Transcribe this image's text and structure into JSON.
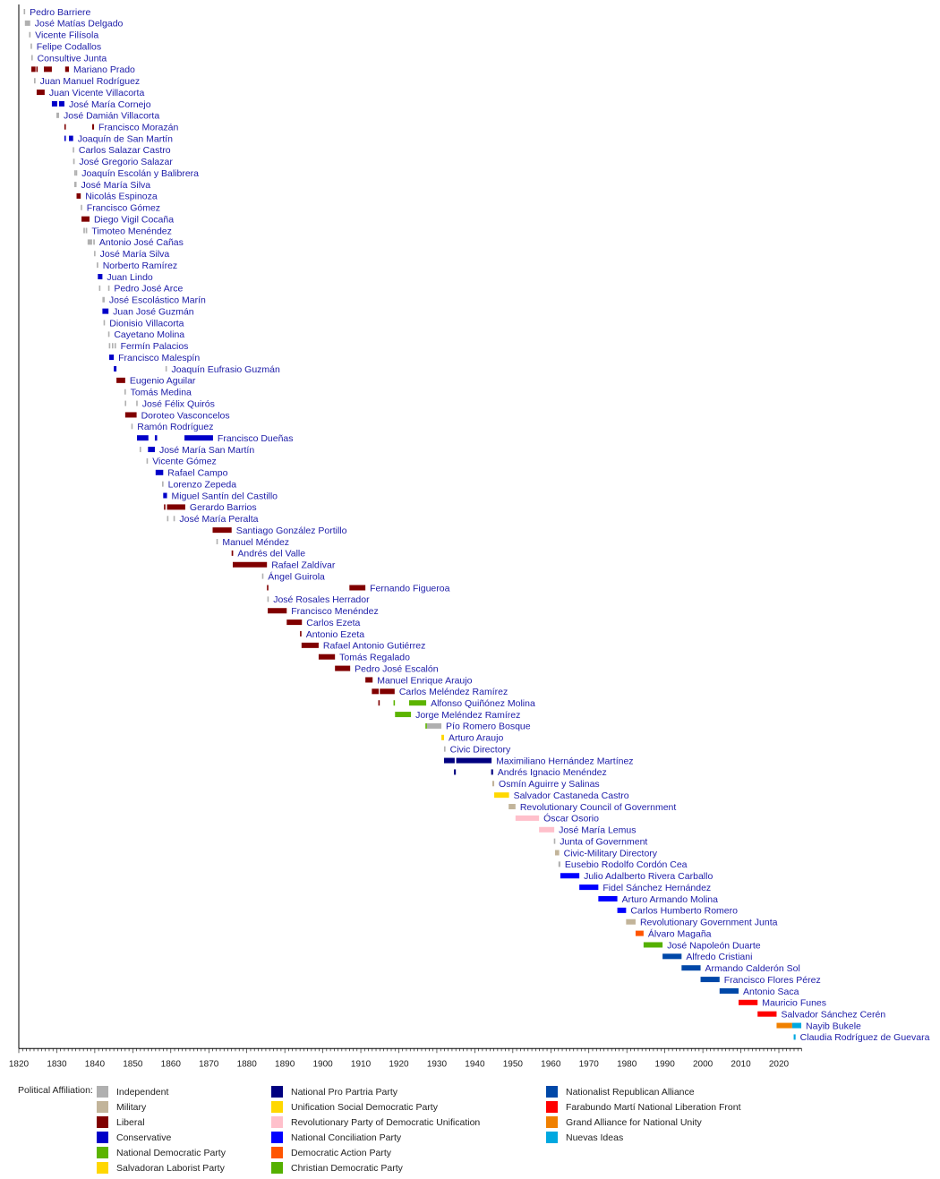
{
  "chart_data": {
    "type": "timeline",
    "xlim": [
      1820,
      2026
    ],
    "x_ticks": [
      1820,
      1830,
      1840,
      1850,
      1860,
      1870,
      1880,
      1890,
      1900,
      1910,
      1920,
      1930,
      1940,
      1950,
      1960,
      1970,
      1980,
      1990,
      2000,
      2010,
      2020
    ],
    "grid": false,
    "legend_position": "bottom",
    "legend_title": "Political Affiliation:",
    "parties": [
      {
        "key": "I",
        "name": "Independent",
        "color": "#b0b0b0"
      },
      {
        "key": "M",
        "name": "Military",
        "color": "#c2b49a"
      },
      {
        "key": "L",
        "name": "Liberal",
        "color": "#800000"
      },
      {
        "key": "C",
        "name": "Conservative",
        "color": "#0000c8"
      },
      {
        "key": "NDP",
        "name": "National Democratic Party",
        "color": "#5cb400"
      },
      {
        "key": "SLP",
        "name": "Salvadoran Laborist Party",
        "color": "#ffd700"
      },
      {
        "key": "PPP",
        "name": "National Pro Partria Party",
        "color": "#000080"
      },
      {
        "key": "USDP",
        "name": "Unification Social Democratic Party",
        "color": "#ffd800"
      },
      {
        "key": "PRUD",
        "name": "Revolutionary Party of Democratic Unification",
        "color": "#ffc0cb"
      },
      {
        "key": "PCN",
        "name": "National Conciliation Party",
        "color": "#0000ff"
      },
      {
        "key": "PAD",
        "name": "Democratic Action Party",
        "color": "#ff5500"
      },
      {
        "key": "PDC",
        "name": "Christian Democratic Party",
        "color": "#55b000"
      },
      {
        "key": "ARENA",
        "name": "Nationalist Republican Alliance",
        "color": "#0048a8"
      },
      {
        "key": "FMLN",
        "name": "Farabundo Martí National Liberation Front",
        "color": "#ff0000"
      },
      {
        "key": "GANA",
        "name": "Grand Alliance for National Unity",
        "color": "#f08000"
      },
      {
        "key": "NI",
        "name": "Nuevas Ideas",
        "color": "#00a8e0"
      }
    ],
    "rows": [
      {
        "name": "Pedro Barriere",
        "terms": [
          [
            1821.3,
            1821.6,
            "I"
          ]
        ]
      },
      {
        "name": "José Matías Delgado",
        "terms": [
          [
            1821.6,
            1823.0,
            "I"
          ]
        ]
      },
      {
        "name": "Vicente Filísola",
        "terms": [
          [
            1822.7,
            1823.1,
            "I"
          ]
        ]
      },
      {
        "name": "Felipe Codallos",
        "terms": [
          [
            1823.1,
            1823.3,
            "I"
          ]
        ]
      },
      {
        "name": "Consultive Junta",
        "terms": [
          [
            1823.3,
            1823.5,
            "I"
          ]
        ]
      },
      {
        "name": "Mariano Prado",
        "terms": [
          [
            1823.3,
            1824.4,
            "L"
          ],
          [
            1824.6,
            1824.8,
            "L"
          ],
          [
            1826.6,
            1828.7,
            "L"
          ],
          [
            1832.2,
            1833.2,
            "L"
          ]
        ]
      },
      {
        "name": "Juan Manuel Rodríguez",
        "terms": [
          [
            1824.0,
            1824.4,
            "I"
          ]
        ]
      },
      {
        "name": "Juan Vicente Villacorta",
        "terms": [
          [
            1824.7,
            1826.8,
            "L"
          ]
        ]
      },
      {
        "name": "José María Cornejo",
        "terms": [
          [
            1828.7,
            1830.1,
            "C"
          ],
          [
            1830.6,
            1832.0,
            "C"
          ]
        ]
      },
      {
        "name": "José Damián Villacorta",
        "terms": [
          [
            1829.9,
            1830.6,
            "I"
          ]
        ]
      },
      {
        "name": "Francisco Morazán",
        "terms": [
          [
            1832.0,
            1832.2,
            "L"
          ],
          [
            1839.3,
            1839.8,
            "L"
          ]
        ]
      },
      {
        "name": "Joaquín de San Martín",
        "terms": [
          [
            1832.0,
            1832.3,
            "C"
          ],
          [
            1833.2,
            1834.3,
            "C"
          ]
        ]
      },
      {
        "name": "Carlos Salazar Castro",
        "terms": [
          [
            1834.2,
            1834.4,
            "I"
          ]
        ]
      },
      {
        "name": "José Gregorio Salazar",
        "terms": [
          [
            1834.3,
            1834.7,
            "I"
          ]
        ]
      },
      {
        "name": "Joaquín Escolán y Balibrera",
        "terms": [
          [
            1834.6,
            1834.8,
            "I"
          ],
          [
            1835.0,
            1835.2,
            "I"
          ]
        ]
      },
      {
        "name": "José María Silva",
        "terms": [
          [
            1834.6,
            1835.2,
            "I"
          ]
        ]
      },
      {
        "name": "Nicolás Espinoza",
        "terms": [
          [
            1835.2,
            1836.3,
            "L"
          ]
        ]
      },
      {
        "name": "Francisco Gómez",
        "terms": [
          [
            1836.3,
            1836.6,
            "I"
          ]
        ]
      },
      {
        "name": "Diego Vigil Cocaña",
        "terms": [
          [
            1836.5,
            1838.6,
            "L"
          ]
        ]
      },
      {
        "name": "Timoteo Menéndez",
        "terms": [
          [
            1837.0,
            1837.4,
            "I"
          ],
          [
            1837.6,
            1838.0,
            "I"
          ]
        ]
      },
      {
        "name": "Antonio José Cañas",
        "terms": [
          [
            1838.1,
            1839.3,
            "I"
          ],
          [
            1839.6,
            1840.0,
            "I"
          ]
        ]
      },
      {
        "name": "José María Silva",
        "terms": [
          [
            1839.8,
            1840.1,
            "I"
          ]
        ]
      },
      {
        "name": "Norberto Ramírez",
        "terms": [
          [
            1840.5,
            1840.9,
            "I"
          ]
        ]
      },
      {
        "name": "Juan Lindo",
        "terms": [
          [
            1840.8,
            1842.0,
            "C"
          ]
        ]
      },
      {
        "name": "Pedro José Arce",
        "terms": [
          [
            1841.1,
            1841.3,
            "I"
          ],
          [
            1843.5,
            1843.7,
            "I"
          ]
        ]
      },
      {
        "name": "José Escolástico Marín",
        "terms": [
          [
            1842.0,
            1842.6,
            "I"
          ]
        ]
      },
      {
        "name": "Juan José Guzmán",
        "terms": [
          [
            1842.0,
            1843.6,
            "C"
          ]
        ]
      },
      {
        "name": "Dionisio Villacorta",
        "terms": [
          [
            1842.3,
            1842.6,
            "I"
          ]
        ]
      },
      {
        "name": "Cayetano Molina",
        "terms": [
          [
            1843.5,
            1843.7,
            "I"
          ]
        ]
      },
      {
        "name": "Fermín Palacios",
        "terms": [
          [
            1843.7,
            1843.9,
            "I"
          ],
          [
            1844.5,
            1844.7,
            "I"
          ],
          [
            1845.2,
            1845.4,
            "I"
          ]
        ]
      },
      {
        "name": "Francisco Malespín",
        "terms": [
          [
            1843.8,
            1845.0,
            "C"
          ]
        ]
      },
      {
        "name": "Joaquín Eufrasio Guzmán",
        "terms": [
          [
            1845.0,
            1845.7,
            "C"
          ],
          [
            1858.6,
            1858.8,
            "I"
          ]
        ]
      },
      {
        "name": "Eugenio Aguilar",
        "terms": [
          [
            1845.7,
            1848.0,
            "L"
          ]
        ]
      },
      {
        "name": "Tomás Medina",
        "terms": [
          [
            1847.8,
            1848.0,
            "I"
          ]
        ]
      },
      {
        "name": "José Félix Quirós",
        "terms": [
          [
            1847.9,
            1848.1,
            "I"
          ],
          [
            1850.9,
            1851.1,
            "I"
          ]
        ]
      },
      {
        "name": "Doroteo Vasconcelos",
        "terms": [
          [
            1848.0,
            1851.0,
            "L"
          ]
        ]
      },
      {
        "name": "Ramón Rodríguez",
        "terms": [
          [
            1849.6,
            1849.8,
            "I"
          ]
        ]
      },
      {
        "name": "Francisco Dueñas",
        "terms": [
          [
            1851.1,
            1854.1,
            "C"
          ],
          [
            1855.8,
            1856.4,
            "C"
          ],
          [
            1863.6,
            1871.1,
            "C"
          ]
        ]
      },
      {
        "name": "José María San Martín",
        "terms": [
          [
            1851.8,
            1852.0,
            "I"
          ],
          [
            1854.0,
            1855.8,
            "C"
          ]
        ]
      },
      {
        "name": "Vicente Gómez",
        "terms": [
          [
            1853.6,
            1853.9,
            "I"
          ]
        ]
      },
      {
        "name": "Rafael Campo",
        "terms": [
          [
            1856.0,
            1858.0,
            "C"
          ]
        ]
      },
      {
        "name": "Lorenzo Zepeda",
        "terms": [
          [
            1857.7,
            1858.0,
            "I"
          ]
        ]
      },
      {
        "name": "Miguel Santín del Castillo",
        "terms": [
          [
            1858.0,
            1859.0,
            "C"
          ]
        ]
      },
      {
        "name": "Gerardo Barrios",
        "terms": [
          [
            1858.2,
            1858.4,
            "L"
          ],
          [
            1859.0,
            1863.8,
            "L"
          ]
        ]
      },
      {
        "name": "José María Peralta",
        "terms": [
          [
            1859.0,
            1859.2,
            "I"
          ],
          [
            1860.7,
            1860.9,
            "I"
          ]
        ]
      },
      {
        "name": "Santiago González Portillo",
        "terms": [
          [
            1871.0,
            1876.0,
            "L"
          ]
        ]
      },
      {
        "name": "Manuel Méndez",
        "terms": [
          [
            1872.0,
            1872.3,
            "I"
          ]
        ]
      },
      {
        "name": "Andrés del Valle",
        "terms": [
          [
            1876.0,
            1876.4,
            "L"
          ]
        ]
      },
      {
        "name": "Rafael Zaldívar",
        "terms": [
          [
            1876.3,
            1885.3,
            "L"
          ]
        ]
      },
      {
        "name": "Ángel Guirola",
        "terms": [
          [
            1884.0,
            1884.3,
            "I"
          ]
        ]
      },
      {
        "name": "Fernando Figueroa",
        "terms": [
          [
            1885.3,
            1885.6,
            "L"
          ],
          [
            1907.0,
            1911.2,
            "L"
          ]
        ]
      },
      {
        "name": "José Rosales Herrador",
        "terms": [
          [
            1885.4,
            1885.6,
            "I"
          ]
        ]
      },
      {
        "name": "Francisco Menéndez",
        "terms": [
          [
            1885.5,
            1890.5,
            "L"
          ]
        ]
      },
      {
        "name": "Carlos Ezeta",
        "terms": [
          [
            1890.5,
            1894.5,
            "L"
          ]
        ]
      },
      {
        "name": "Antonio Ezeta",
        "terms": [
          [
            1894.0,
            1894.3,
            "L"
          ]
        ]
      },
      {
        "name": "Rafael Antonio Gutiérrez",
        "terms": [
          [
            1894.4,
            1898.9,
            "L"
          ]
        ]
      },
      {
        "name": "Tomás Regalado",
        "terms": [
          [
            1898.9,
            1903.2,
            "L"
          ]
        ]
      },
      {
        "name": "Pedro José Escalón",
        "terms": [
          [
            1903.2,
            1907.2,
            "L"
          ]
        ]
      },
      {
        "name": "Manuel Enrique Araujo",
        "terms": [
          [
            1911.2,
            1913.1,
            "L"
          ]
        ]
      },
      {
        "name": "Carlos Meléndez Ramírez",
        "terms": [
          [
            1912.9,
            1914.7,
            "L"
          ],
          [
            1915.0,
            1918.9,
            "L"
          ]
        ]
      },
      {
        "name": "Alfonso Quiñónez Molina",
        "terms": [
          [
            1914.6,
            1914.9,
            "L"
          ],
          [
            1918.6,
            1918.9,
            "NDP"
          ],
          [
            1922.7,
            1927.2,
            "NDP"
          ]
        ]
      },
      {
        "name": "Jorge Meléndez Ramírez",
        "terms": [
          [
            1919.0,
            1923.2,
            "NDP"
          ]
        ]
      },
      {
        "name": "Pío Romero Bosque",
        "terms": [
          [
            1927.0,
            1927.4,
            "NDP"
          ],
          [
            1927.4,
            1931.2,
            "I"
          ]
        ]
      },
      {
        "name": "Arturo Araujo",
        "terms": [
          [
            1931.2,
            1931.9,
            "SLP"
          ]
        ]
      },
      {
        "name": "Civic Directory",
        "terms": [
          [
            1931.9,
            1932.1,
            "I"
          ]
        ]
      },
      {
        "name": "Maximiliano Hernández Martínez",
        "terms": [
          [
            1931.9,
            1934.7,
            "PPP"
          ],
          [
            1935.1,
            1944.4,
            "PPP"
          ]
        ]
      },
      {
        "name": "Andrés Ignacio Menéndez",
        "terms": [
          [
            1934.5,
            1935.0,
            "PPP"
          ],
          [
            1944.3,
            1944.8,
            "PPP"
          ]
        ]
      },
      {
        "name": "Osmín Aguirre y Salinas",
        "terms": [
          [
            1944.6,
            1945.1,
            "M"
          ]
        ]
      },
      {
        "name": "Salvador Castaneda Castro",
        "terms": [
          [
            1945.1,
            1949.0,
            "USDP"
          ]
        ]
      },
      {
        "name": "Revolutionary Council of Government",
        "terms": [
          [
            1948.9,
            1950.7,
            "M"
          ]
        ]
      },
      {
        "name": "Óscar Osorio",
        "terms": [
          [
            1950.7,
            1956.9,
            "PRUD"
          ]
        ]
      },
      {
        "name": "José María Lemus",
        "terms": [
          [
            1956.9,
            1960.9,
            "PRUD"
          ]
        ]
      },
      {
        "name": "Junta of Government",
        "terms": [
          [
            1960.8,
            1961.1,
            "I"
          ]
        ]
      },
      {
        "name": "Civic-Military Directory",
        "terms": [
          [
            1961.1,
            1962.2,
            "M"
          ]
        ]
      },
      {
        "name": "Eusebio Rodolfo Cordón Cea",
        "terms": [
          [
            1962.0,
            1962.5,
            "I"
          ]
        ]
      },
      {
        "name": "Julio Adalberto Rivera Carballo",
        "terms": [
          [
            1962.5,
            1967.5,
            "PCN"
          ]
        ]
      },
      {
        "name": "Fidel Sánchez Hernández",
        "terms": [
          [
            1967.5,
            1972.5,
            "PCN"
          ]
        ]
      },
      {
        "name": "Arturo Armando Molina",
        "terms": [
          [
            1972.5,
            1977.5,
            "PCN"
          ]
        ]
      },
      {
        "name": "Carlos Humberto Romero",
        "terms": [
          [
            1977.5,
            1979.8,
            "PCN"
          ]
        ]
      },
      {
        "name": "Revolutionary Government Junta",
        "terms": [
          [
            1979.8,
            1982.3,
            "M"
          ]
        ]
      },
      {
        "name": "Álvaro Magaña",
        "terms": [
          [
            1982.3,
            1984.4,
            "PAD"
          ]
        ]
      },
      {
        "name": "José Napoleón Duarte",
        "terms": [
          [
            1984.4,
            1989.4,
            "PDC"
          ]
        ]
      },
      {
        "name": "Alfredo Cristiani",
        "terms": [
          [
            1989.4,
            1994.4,
            "ARENA"
          ]
        ]
      },
      {
        "name": "Armando Calderón Sol",
        "terms": [
          [
            1994.4,
            1999.4,
            "ARENA"
          ]
        ]
      },
      {
        "name": "Francisco Flores Pérez",
        "terms": [
          [
            1999.4,
            2004.4,
            "ARENA"
          ]
        ]
      },
      {
        "name": "Antonio Saca",
        "terms": [
          [
            2004.4,
            2009.4,
            "ARENA"
          ]
        ]
      },
      {
        "name": "Mauricio Funes",
        "terms": [
          [
            2009.4,
            2014.4,
            "FMLN"
          ]
        ]
      },
      {
        "name": "Salvador Sánchez Cerén",
        "terms": [
          [
            2014.4,
            2019.4,
            "FMLN"
          ]
        ]
      },
      {
        "name": "Nayib Bukele",
        "terms": [
          [
            2019.4,
            2023.5,
            "GANA"
          ],
          [
            2023.5,
            2025.9,
            "NI"
          ]
        ]
      },
      {
        "name": "Claudia Rodríguez de Guevara",
        "terms": [
          [
            2023.9,
            2024.4,
            "NI"
          ]
        ]
      }
    ]
  }
}
